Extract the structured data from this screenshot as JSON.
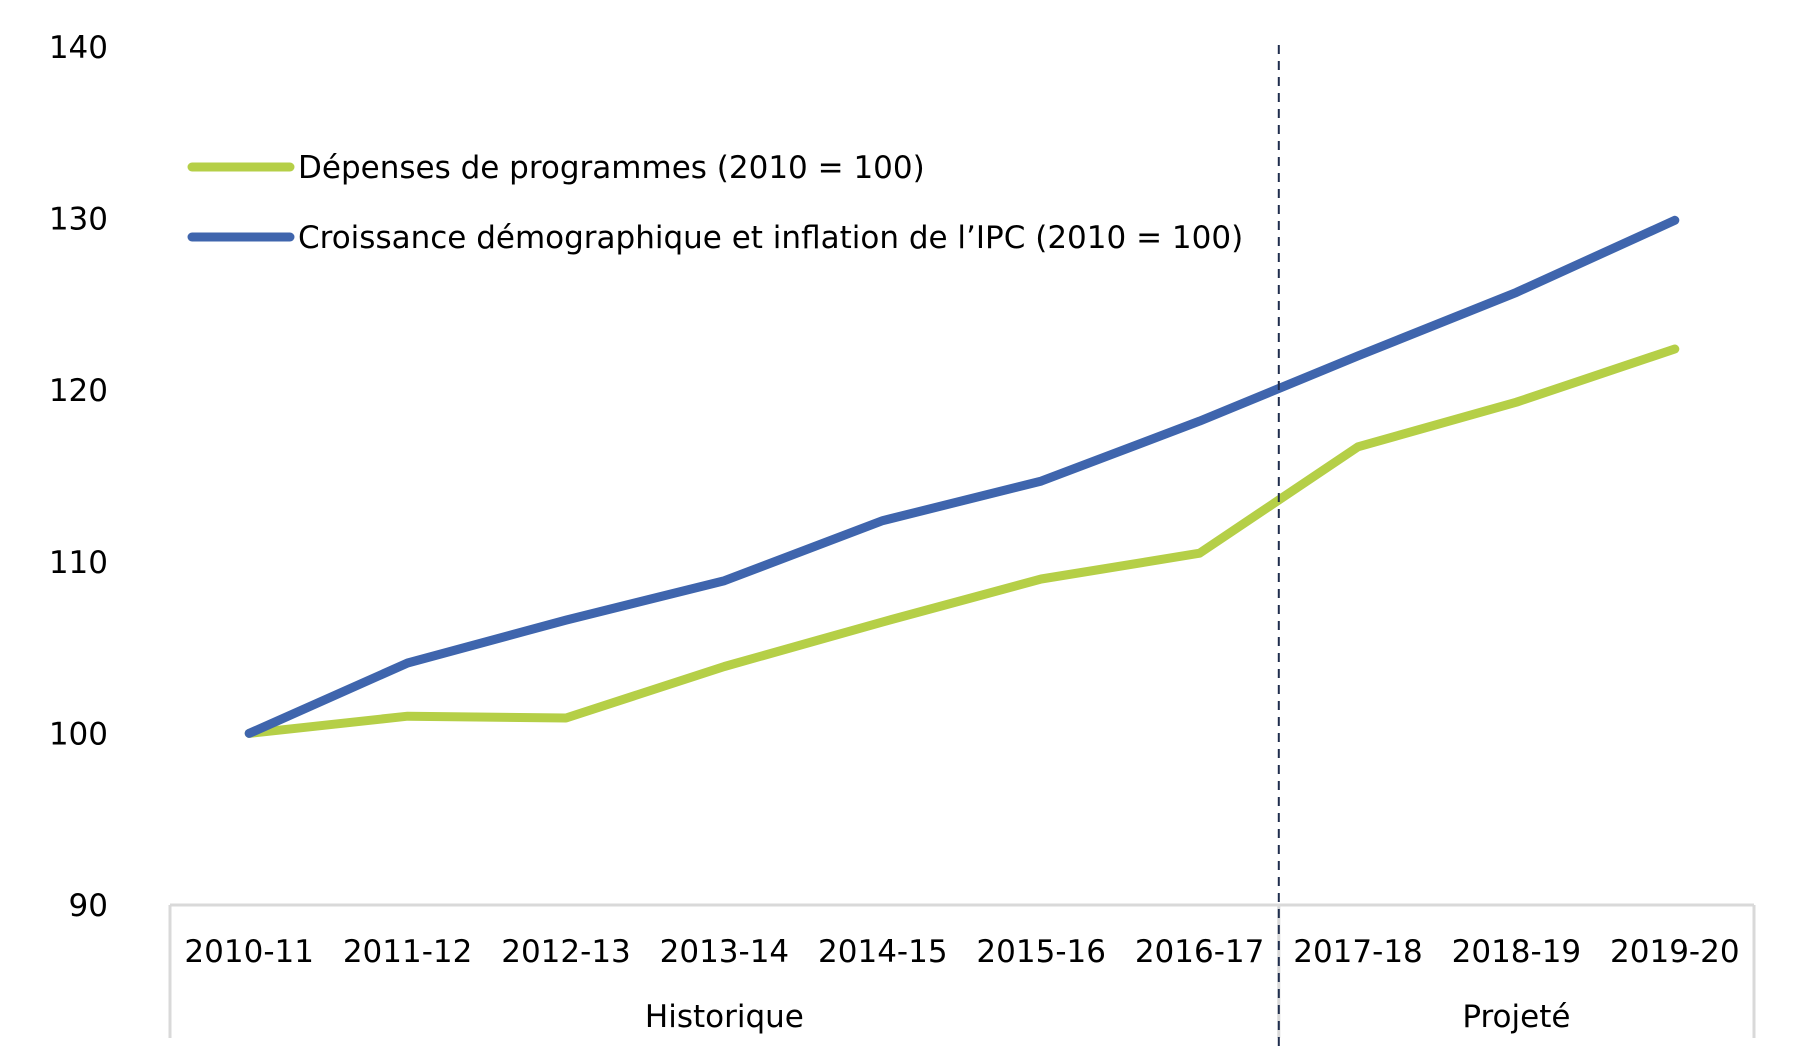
{
  "chart_data": {
    "type": "line",
    "title": "",
    "xlabel": "",
    "ylabel": "",
    "ylim": [
      90,
      140
    ],
    "yticks": [
      90,
      100,
      110,
      120,
      130,
      140
    ],
    "grid": false,
    "legend_position": "top-left",
    "categories": [
      "2010-11",
      "2011-12",
      "2012-13",
      "2013-14",
      "2014-15",
      "2015-16",
      "2016-17",
      "2017-18",
      "2018-19",
      "2019-20"
    ],
    "groups": [
      {
        "label": "Historique",
        "span": [
          0,
          6
        ]
      },
      {
        "label": "Projeté",
        "span": [
          7,
          9
        ]
      }
    ],
    "divider_after_index": 6,
    "series": [
      {
        "name": "Dépenses de programmes (2010 = 100)",
        "color": "#b5cf47",
        "values": [
          100.0,
          101.0,
          100.9,
          103.9,
          106.5,
          109.0,
          110.5,
          116.7,
          119.3,
          122.4
        ]
      },
      {
        "name": "Croissance démographique et inflation de l’IPC (2010 = 100)",
        "color": "#3f65ad",
        "values": [
          100.0,
          104.1,
          106.6,
          108.9,
          112.4,
          114.7,
          118.2,
          122.0,
          125.7,
          129.9
        ]
      }
    ]
  },
  "colors": {
    "axis": "#d9d9d9",
    "divider": "#1f2d4d",
    "text": "#000000"
  }
}
